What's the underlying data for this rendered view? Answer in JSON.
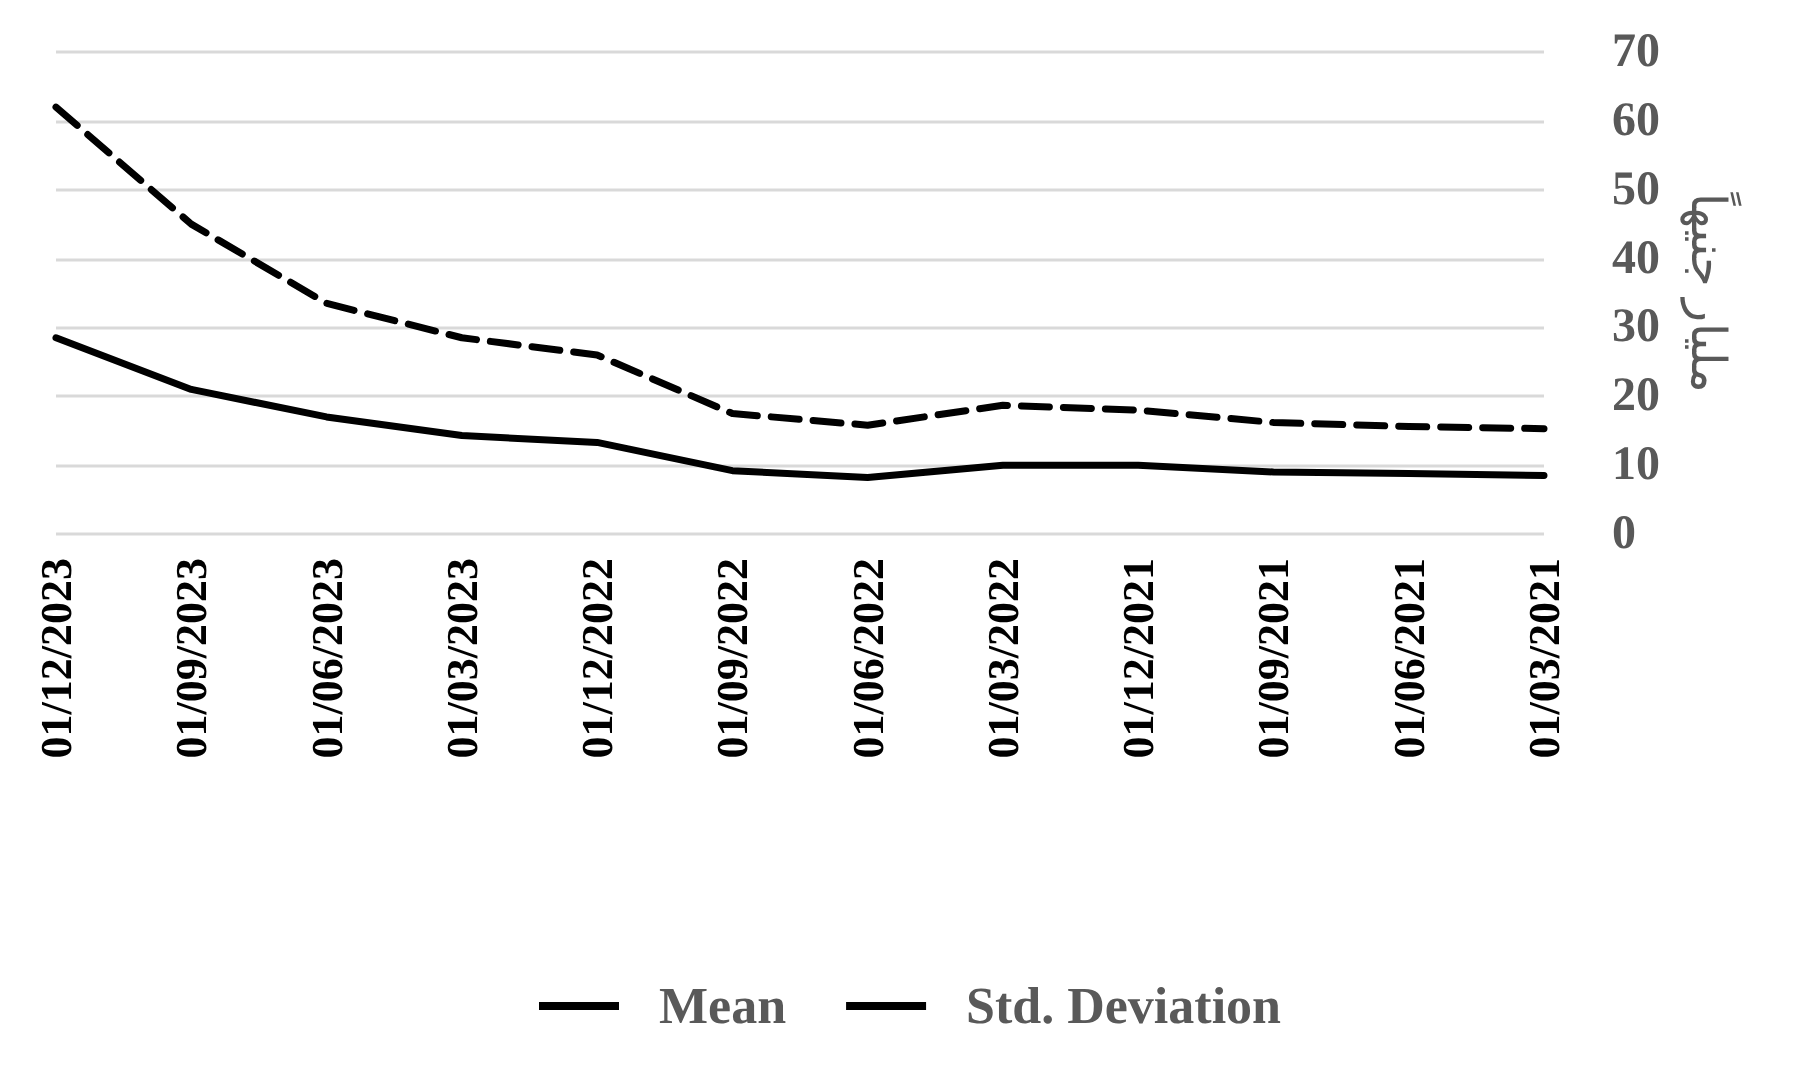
{
  "chart_data": {
    "type": "line",
    "ylabel": "مليار جنيهاً",
    "categories": [
      "01/12/2023",
      "01/09/2023",
      "01/06/2023",
      "01/03/2023",
      "01/12/2022",
      "01/09/2022",
      "01/06/2022",
      "01/03/2022",
      "01/12/2021",
      "01/09/2021",
      "01/06/2021",
      "01/03/2021"
    ],
    "series": [
      {
        "name": "Mean",
        "color": "#000000",
        "line_style": "solid",
        "values": [
          28.5,
          21,
          17,
          14.3,
          13.3,
          9.2,
          8.2,
          10,
          10,
          9,
          8.8,
          8.5
        ]
      },
      {
        "name": "Std. Deviation",
        "color": "#000000",
        "line_style": "dashed",
        "values": [
          62,
          45,
          33.5,
          28.5,
          26,
          17.5,
          15.8,
          18.7,
          18,
          16.2,
          15.6,
          15.3
        ]
      }
    ],
    "ylim": [
      0,
      70
    ],
    "yticks": [
      0,
      10,
      20,
      30,
      40,
      50,
      60,
      70
    ],
    "grid": "y",
    "legend": "bottom",
    "marker": "none"
  }
}
